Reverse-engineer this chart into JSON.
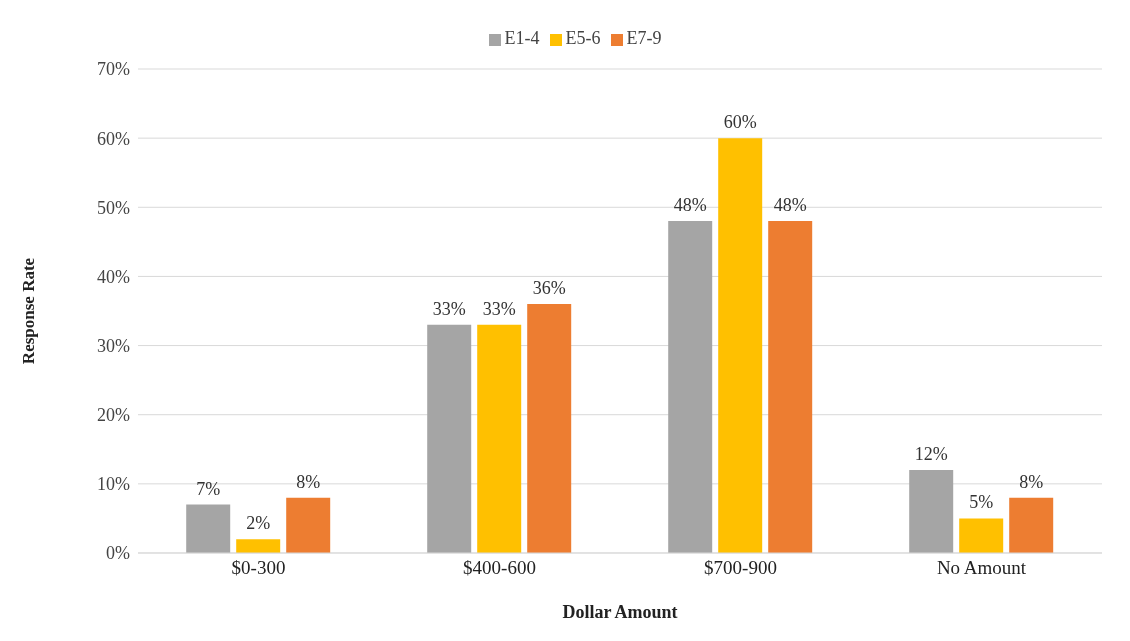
{
  "chart_data": {
    "type": "bar",
    "xlabel": "Dollar Amount",
    "ylabel": "Response Rate",
    "categories": [
      "$0-300",
      "$400-600",
      "$700-900",
      "No Amount"
    ],
    "series": [
      {
        "name": "E1-4",
        "color": "#a5a5a5",
        "values": [
          7,
          33,
          48,
          12
        ],
        "value_labels": [
          "7%",
          "33%",
          "48%",
          "12%"
        ]
      },
      {
        "name": "E5-6",
        "color": "#ffc000",
        "values": [
          2,
          33,
          60,
          5
        ],
        "value_labels": [
          "2%",
          "33%",
          "60%",
          "5%"
        ]
      },
      {
        "name": "E7-9",
        "color": "#ed7d31",
        "values": [
          8,
          36,
          48,
          8
        ],
        "value_labels": [
          "8%",
          "36%",
          "48%",
          "8%"
        ]
      }
    ],
    "ylim": [
      0,
      70
    ],
    "yticks": [
      {
        "value": 0,
        "label": "0%"
      },
      {
        "value": 10,
        "label": "10%"
      },
      {
        "value": 20,
        "label": "20%"
      },
      {
        "value": 30,
        "label": "30%"
      },
      {
        "value": 40,
        "label": "40%"
      },
      {
        "value": 50,
        "label": "50%"
      },
      {
        "value": 60,
        "label": "60%"
      },
      {
        "value": 70,
        "label": "70%"
      }
    ],
    "grid": "y",
    "legend": "top"
  }
}
